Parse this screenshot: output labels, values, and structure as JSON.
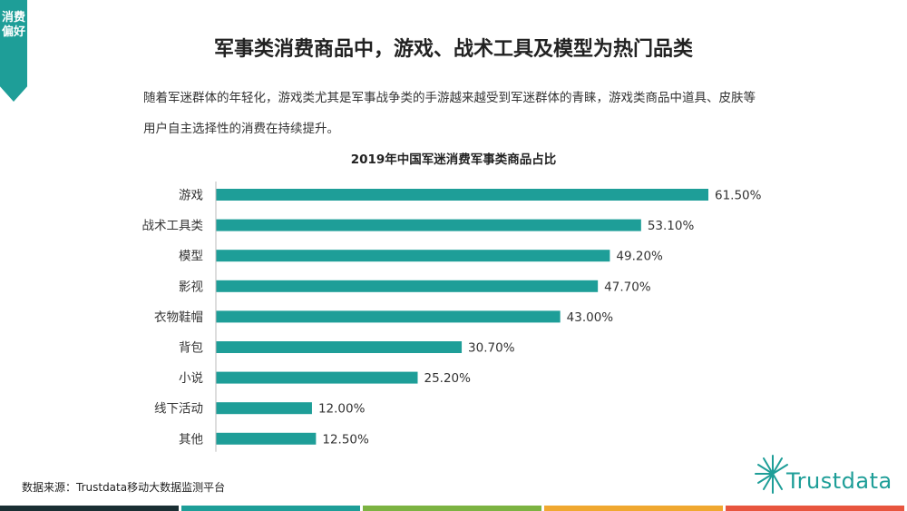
{
  "side_tab": {
    "text": "消费偏好"
  },
  "header": {
    "title": "军事类消费商品中，游戏、战术工具及模型为热门品类",
    "paragraph_line1": "随着军迷群体的年轻化，游戏类尤其是军事战争类的手游越来越受到军迷群体的青睐，游戏类商品中道具、皮肤等",
    "paragraph_line2": "用户自主选择性的消费在持续提升。"
  },
  "chart_data": {
    "type": "bar",
    "orientation": "horizontal",
    "title": "2019年中国军迷消费军事类商品占比",
    "categories": [
      "游戏",
      "战术工具类",
      "模型",
      "影视",
      "衣物鞋帽",
      "背包",
      "小说",
      "线下活动",
      "其他"
    ],
    "values": [
      61.5,
      53.1,
      49.2,
      47.7,
      43.0,
      30.7,
      25.2,
      12.0,
      12.5
    ],
    "value_labels": [
      "61.50%",
      "53.10%",
      "49.20%",
      "47.70%",
      "43.00%",
      "30.70%",
      "25.20%",
      "12.00%",
      "12.50%"
    ],
    "xlim": [
      0,
      61.5
    ],
    "grid": false,
    "bar_color": "#1e9e98"
  },
  "footer": {
    "source": "数据来源：Trustdata移动大数据监测平台",
    "logo_text": "Trustdata",
    "bar_colors": [
      "#1a2f33",
      "#1e9e98",
      "#7cb342",
      "#f0a830",
      "#e8553e"
    ]
  }
}
